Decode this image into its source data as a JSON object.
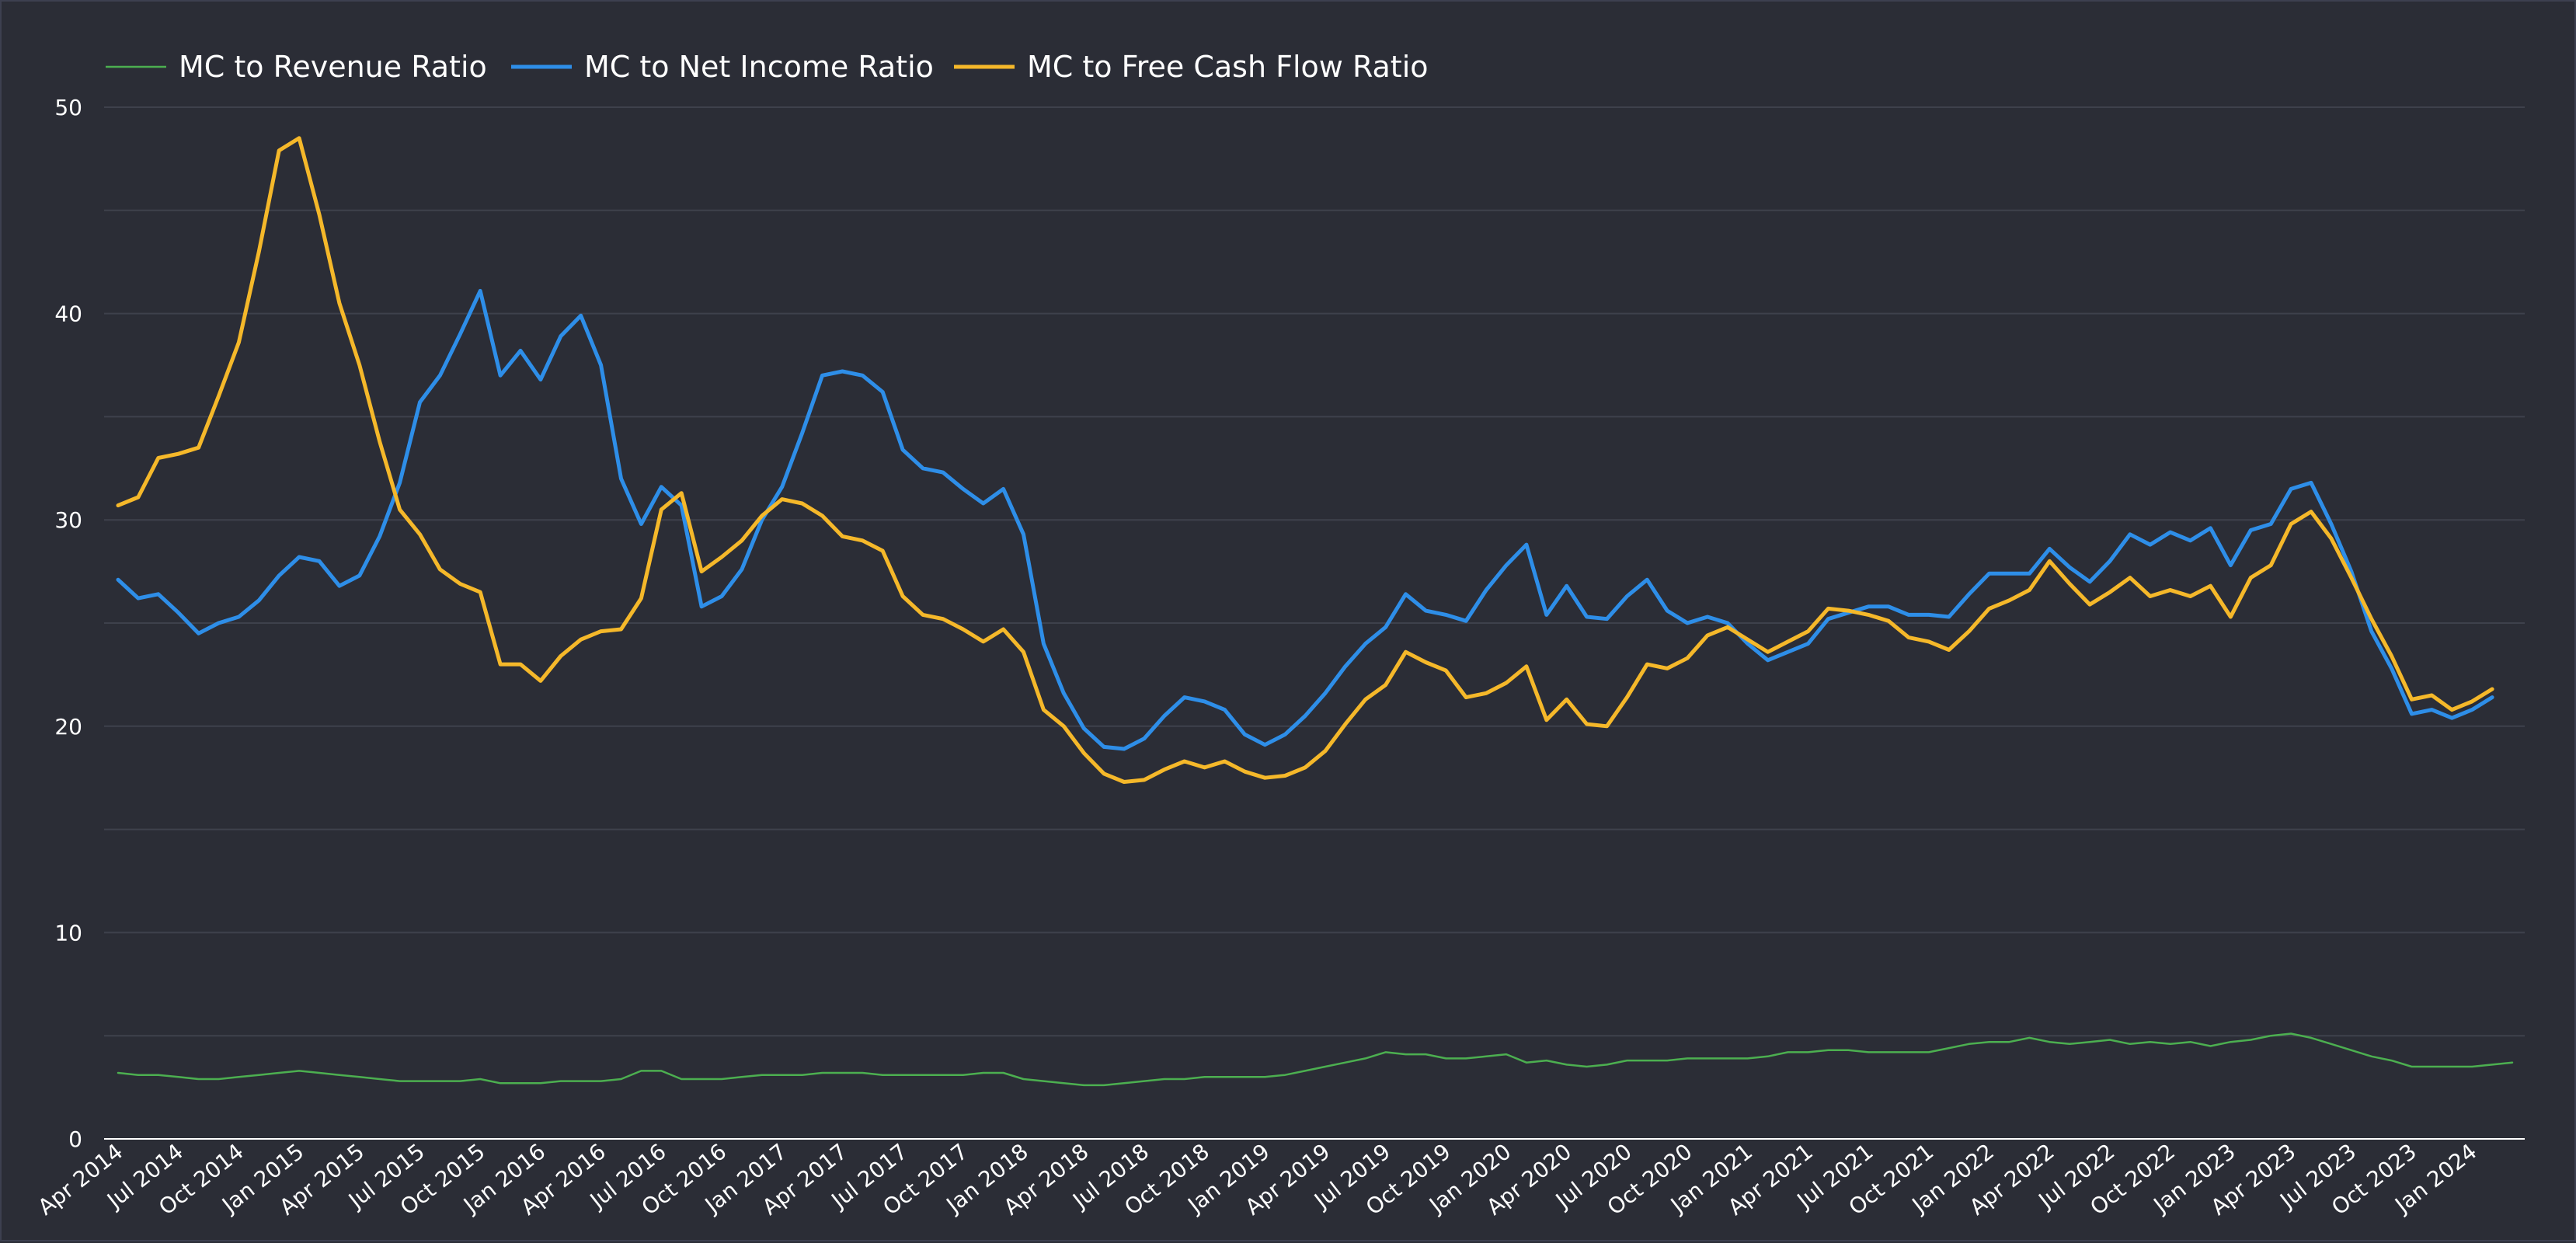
{
  "chart_data": {
    "type": "line",
    "title": "",
    "xlabel": "",
    "ylabel": "",
    "ylim": [
      0,
      50
    ],
    "yticks": [
      0,
      10,
      20,
      30,
      40,
      50
    ],
    "grid": true,
    "legend_position": "top-left",
    "background_color": "#2b2d36",
    "grid_color": "#3e414c",
    "axis_color": "#ffffff",
    "text_color": "#ffffff",
    "xtick_labels": [
      "Apr 2014",
      "Jul 2014",
      "Oct 2014",
      "Jan 2015",
      "Apr 2015",
      "Jul 2015",
      "Oct 2015",
      "Jan 2016",
      "Apr 2016",
      "Jul 2016",
      "Oct 2016",
      "Jan 2017",
      "Apr 2017",
      "Jul 2017",
      "Oct 2017",
      "Jan 2018",
      "Apr 2018",
      "Jul 2018",
      "Oct 2018",
      "Jan 2019",
      "Apr 2019",
      "Jul 2019",
      "Oct 2019",
      "Jan 2020",
      "Apr 2020",
      "Jul 2020",
      "Oct 2020",
      "Jan 2021",
      "Apr 2021",
      "Jul 2021",
      "Oct 2021",
      "Jan 2022",
      "Apr 2022",
      "Jul 2022",
      "Oct 2022",
      "Jan 2023",
      "Apr 2023",
      "Jul 2023",
      "Oct 2023",
      "Jan 2024"
    ],
    "points_per_tick": 3,
    "series": [
      {
        "name": "MC to Revenue Ratio",
        "color": "#4caf50",
        "values": [
          3.2,
          3.1,
          3.1,
          3.0,
          2.9,
          2.9,
          3.0,
          3.1,
          3.2,
          3.3,
          3.2,
          3.1,
          3.0,
          2.9,
          2.8,
          2.8,
          2.8,
          2.8,
          2.9,
          2.7,
          2.7,
          2.7,
          2.8,
          2.8,
          2.8,
          2.9,
          3.3,
          3.3,
          2.9,
          2.9,
          2.9,
          3.0,
          3.1,
          3.1,
          3.1,
          3.2,
          3.2,
          3.2,
          3.1,
          3.1,
          3.1,
          3.1,
          3.1,
          3.2,
          3.2,
          2.9,
          2.8,
          2.7,
          2.6,
          2.6,
          2.7,
          2.8,
          2.9,
          2.9,
          3.0,
          3.0,
          3.0,
          3.0,
          3.1,
          3.3,
          3.5,
          3.7,
          3.9,
          4.2,
          4.1,
          4.1,
          3.9,
          3.9,
          4.0,
          4.1,
          3.7,
          3.8,
          3.6,
          3.5,
          3.6,
          3.8,
          3.8,
          3.8,
          3.9,
          3.9,
          3.9,
          3.9,
          4.0,
          4.2,
          4.2,
          4.3,
          4.3,
          4.2,
          4.2,
          4.2,
          4.2,
          4.4,
          4.6,
          4.7,
          4.7,
          4.9,
          4.7,
          4.6,
          4.7,
          4.8,
          4.6,
          4.7,
          4.6,
          4.7,
          4.5,
          4.7,
          4.8,
          5.0,
          5.1,
          4.9,
          4.6,
          4.3,
          4.0,
          3.8,
          3.5,
          3.5,
          3.5,
          3.5,
          3.6,
          3.7
        ]
      },
      {
        "name": "MC to Net Income Ratio",
        "color": "#2e8ee8",
        "values": [
          27.1,
          26.2,
          26.4,
          25.5,
          24.5,
          25.0,
          25.3,
          26.1,
          27.3,
          28.2,
          28.0,
          26.8,
          27.3,
          29.2,
          31.8,
          35.7,
          37.0,
          39.0,
          41.1,
          37.0,
          38.2,
          36.8,
          38.9,
          39.9,
          37.5,
          32.0,
          29.8,
          31.6,
          30.7,
          25.8,
          26.3,
          27.6,
          30.0,
          31.6,
          34.2,
          37.0,
          37.2,
          37.0,
          36.2,
          33.4,
          32.5,
          32.3,
          31.5,
          30.8,
          31.5,
          29.3,
          24.0,
          21.6,
          19.9,
          19.0,
          18.9,
          19.4,
          20.5,
          21.4,
          21.2,
          20.8,
          19.6,
          19.1,
          19.6,
          20.5,
          21.6,
          22.9,
          24.0,
          24.8,
          26.4,
          25.6,
          25.4,
          25.1,
          26.6,
          27.8,
          28.8,
          25.4,
          26.8,
          25.3,
          25.2,
          26.3,
          27.1,
          25.6,
          25.0,
          25.3,
          25.0,
          24.0,
          23.2,
          23.6,
          24.0,
          25.2,
          25.5,
          25.8,
          25.8,
          25.4,
          25.4,
          25.3,
          26.4,
          27.4,
          27.4,
          27.4,
          28.6,
          27.7,
          27.0,
          28.0,
          29.3,
          28.8,
          29.4,
          29.0,
          29.6,
          27.8,
          29.5,
          29.8,
          31.5,
          31.8,
          29.8,
          27.5,
          24.6,
          22.8,
          20.6,
          20.8,
          20.4,
          20.8,
          21.4
        ]
      },
      {
        "name": "MC to Free Cash Flow Ratio",
        "color": "#f5b82a",
        "values": [
          30.7,
          31.1,
          33.0,
          33.2,
          33.5,
          36.0,
          38.6,
          43.0,
          47.9,
          48.5,
          44.8,
          40.5,
          37.5,
          33.8,
          30.5,
          29.3,
          27.6,
          26.9,
          26.5,
          23.0,
          23.0,
          22.2,
          23.4,
          24.2,
          24.6,
          24.7,
          26.2,
          30.5,
          31.3,
          27.5,
          28.2,
          29.0,
          30.2,
          31.0,
          30.8,
          30.2,
          29.2,
          29.0,
          28.5,
          26.3,
          25.4,
          25.2,
          24.7,
          24.1,
          24.7,
          23.6,
          20.8,
          20.0,
          18.7,
          17.7,
          17.3,
          17.4,
          17.9,
          18.3,
          18.0,
          18.3,
          17.8,
          17.5,
          17.6,
          18.0,
          18.8,
          20.1,
          21.3,
          22.0,
          23.6,
          23.1,
          22.7,
          21.4,
          21.6,
          22.1,
          22.9,
          20.3,
          21.3,
          20.1,
          20.0,
          21.4,
          23.0,
          22.8,
          23.3,
          24.4,
          24.8,
          24.2,
          23.6,
          24.1,
          24.6,
          25.7,
          25.6,
          25.4,
          25.1,
          24.3,
          24.1,
          23.7,
          24.6,
          25.7,
          26.1,
          26.6,
          28.0,
          26.9,
          25.9,
          26.5,
          27.2,
          26.3,
          26.6,
          26.3,
          26.8,
          25.3,
          27.2,
          27.8,
          29.8,
          30.4,
          29.1,
          27.2,
          25.2,
          23.4,
          21.3,
          21.5,
          20.8,
          21.2,
          21.8
        ]
      }
    ]
  }
}
